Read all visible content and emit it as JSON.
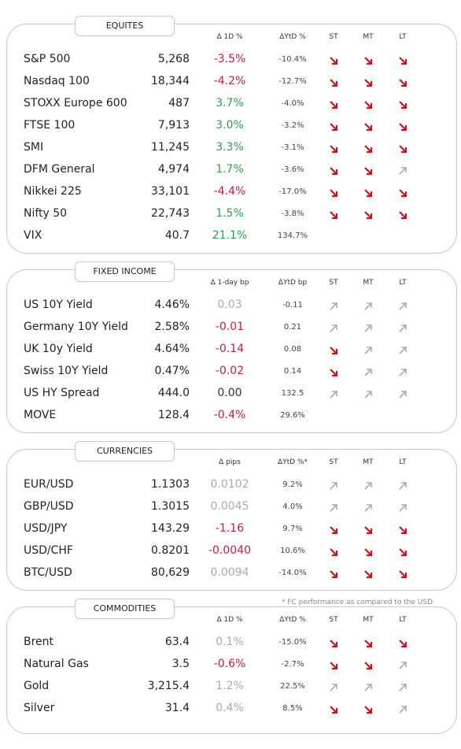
{
  "sections": [
    {
      "title": "EQUITES",
      "headers": [
        "Δ 1D %",
        "ΔYtD %",
        "ST",
        "MT",
        "LT"
      ],
      "positive_color": "#2e9e4f",
      "rows": [
        {
          "name": "S&P 500",
          "level": "5,268",
          "change": "-3.5%",
          "ytd": "-10.4%",
          "trend": [
            "down",
            "down",
            "down"
          ]
        },
        {
          "name": "Nasdaq 100",
          "level": "18,344",
          "change": "-4.2%",
          "ytd": "-12.7%",
          "trend": [
            "down",
            "down",
            "down"
          ]
        },
        {
          "name": "STOXX Europe 600",
          "level": "487",
          "change": "3.7%",
          "ytd": "-4.0%",
          "trend": [
            "down",
            "down",
            "down"
          ]
        },
        {
          "name": "FTSE 100",
          "level": "7,913",
          "change": "3.0%",
          "ytd": "-3.2%",
          "trend": [
            "down",
            "down",
            "down"
          ]
        },
        {
          "name": "SMI",
          "level": "11,245",
          "change": "3.3%",
          "ytd": "-3.1%",
          "trend": [
            "down",
            "down",
            "down"
          ]
        },
        {
          "name": "DFM General",
          "level": "4,974",
          "change": "1.7%",
          "ytd": "-3.6%",
          "trend": [
            "down",
            "down",
            "up"
          ]
        },
        {
          "name": "Nikkei 225",
          "level": "33,101",
          "change": "-4.4%",
          "ytd": "-17.0%",
          "trend": [
            "down",
            "down",
            "down"
          ]
        },
        {
          "name": "Nifty  50",
          "level": "22,743",
          "change": "1.5%",
          "ytd": "-3.8%",
          "trend": [
            "down",
            "down",
            "down"
          ]
        },
        {
          "name": "VIX",
          "level": "40.7",
          "change": "21.1%",
          "ytd": "134.7%",
          "trend": []
        }
      ]
    },
    {
      "title": "FIXED INCOME",
      "headers": [
        "Δ 1-day bp",
        "ΔYtD bp",
        "ST",
        "MT",
        "LT"
      ],
      "positive_color": "#aaaaaa",
      "rows": [
        {
          "name": "US 10Y Yield",
          "level": "4.46%",
          "change": "0.03",
          "ytd": "-0.11",
          "trend": [
            "up",
            "up",
            "up"
          ]
        },
        {
          "name": "Germany 10Y Yield",
          "level": "2.58%",
          "change": "-0.01",
          "ytd": "0.21",
          "trend": [
            "up",
            "up",
            "up"
          ]
        },
        {
          "name": "UK 10y Yield",
          "level": "4.64%",
          "change": "-0.14",
          "ytd": "0.08",
          "trend": [
            "down",
            "up",
            "up"
          ]
        },
        {
          "name": "Swiss 10Y Yield",
          "level": "0.47%",
          "change": "-0.02",
          "ytd": "0.14",
          "trend": [
            "down",
            "up",
            "up"
          ]
        },
        {
          "name": "US HY Spread",
          "level": "444.0",
          "change": "0.00",
          "ytd": "132.5",
          "trend": [
            "up",
            "up",
            "up"
          ]
        },
        {
          "name": "MOVE",
          "level": "128.4",
          "change": "-0.4%",
          "ytd": "29.6%",
          "trend": []
        }
      ]
    },
    {
      "title": "CURRENCIES",
      "headers": [
        "Δ pips",
        "ΔYtD %*",
        "ST",
        "MT",
        "LT"
      ],
      "positive_color": "#aaaaaa",
      "rows": [
        {
          "name": "EUR/USD",
          "level": "1.1303",
          "change": "0.0102",
          "ytd": "9.2%",
          "trend": [
            "up",
            "up",
            "up"
          ]
        },
        {
          "name": "GBP/USD",
          "level": "1.3015",
          "change": "0.0045",
          "ytd": "4.0%",
          "trend": [
            "up",
            "up",
            "up"
          ]
        },
        {
          "name": "USD/JPY",
          "level": "143.29",
          "change": "-1.16",
          "ytd": "9.7%",
          "trend": [
            "down",
            "down",
            "down"
          ]
        },
        {
          "name": "USD/CHF",
          "level": "0.8201",
          "change": "-0.0040",
          "ytd": "10.6%",
          "trend": [
            "down",
            "down",
            "down"
          ]
        },
        {
          "name": "BTC/USD",
          "level": "80,629",
          "change": "0.0094",
          "ytd": "-14.0%",
          "trend": [
            "down",
            "down",
            "down"
          ]
        }
      ]
    },
    {
      "title": "COMMODITIES",
      "headers": [
        "Δ 1D %",
        "ΔYtD %",
        "ST",
        "MT",
        "LT"
      ],
      "positive_color": "#aaaaaa",
      "rows": [
        {
          "name": "Brent",
          "level": "63.4",
          "change": "0.1%",
          "ytd": "-15.0%",
          "trend": [
            "down",
            "down",
            "down"
          ]
        },
        {
          "name": "Natural Gas",
          "level": "3.5",
          "change": "-0.6%",
          "ytd": "-2.7%",
          "trend": [
            "down",
            "down",
            "up"
          ]
        },
        {
          "name": "Gold",
          "level": "3,215.4",
          "change": "1.2%",
          "ytd": "22.5%",
          "trend": [
            "up",
            "up",
            "up"
          ]
        },
        {
          "name": "Silver",
          "level": "31.4",
          "change": "0.4%",
          "ytd": "8.5%",
          "trend": [
            "down",
            "down",
            "up"
          ]
        }
      ]
    }
  ],
  "footnote": "* FC performance as compared to the USD"
}
